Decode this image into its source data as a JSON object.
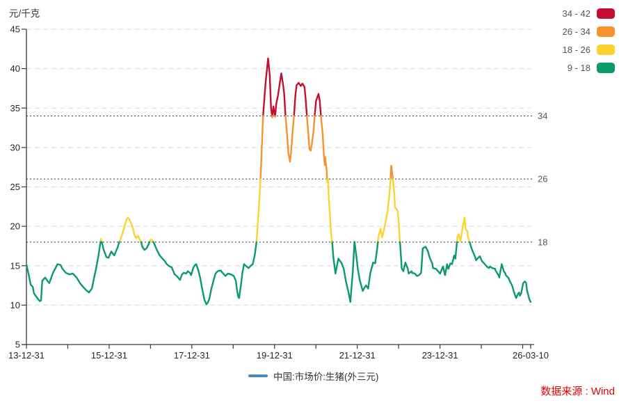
{
  "unit_label": "元/千克",
  "source_label": "数据来源 : Wind",
  "series_legend": {
    "label": "中国:市场价:生猪(外三元)",
    "marker_color": "#4E86B4"
  },
  "bands_legend": [
    {
      "label": "34 - 42",
      "color": "#C60D32"
    },
    {
      "label": "26 - 34",
      "color": "#F79231"
    },
    {
      "label": "18 - 26",
      "color": "#FAD330"
    },
    {
      "label": "9 - 18",
      "color": "#0A9B68"
    }
  ],
  "chart_data": {
    "type": "line",
    "title": "",
    "series_name": "中国:市场价:生猪(外三元)",
    "ylabel": "元/千克",
    "ylim": [
      5,
      45
    ],
    "y_ticks": [
      45,
      40,
      35,
      30,
      25,
      20,
      15,
      10,
      5
    ],
    "grid": "dashed horizontal at every y tick",
    "threshold_lines": [
      {
        "value": 34,
        "label": "34"
      },
      {
        "value": 26,
        "label": "26"
      },
      {
        "value": 18,
        "label": "18"
      }
    ],
    "x_format": "decimal_year",
    "x_range": [
      2013.997,
      2026.19
    ],
    "x_major_tick_labels": [
      {
        "pos": 2013.997,
        "label": "13-12-31"
      },
      {
        "pos": 2015.997,
        "label": "15-12-31"
      },
      {
        "pos": 2017.997,
        "label": "17-12-31"
      },
      {
        "pos": 2019.997,
        "label": "19-12-31"
      },
      {
        "pos": 2021.997,
        "label": "21-12-31"
      },
      {
        "pos": 2023.997,
        "label": "23-12-31"
      },
      {
        "pos": 2026.19,
        "label": "26-03-10"
      }
    ],
    "minor_ticks_every_years": 1,
    "color_bands": [
      {
        "range": [
          34,
          42
        ],
        "color": "#C60D32"
      },
      {
        "range": [
          26,
          34
        ],
        "color": "#F79231"
      },
      {
        "range": [
          18,
          26
        ],
        "color": "#FAD330"
      },
      {
        "range": [
          9,
          18
        ],
        "color": "#0A9B68"
      }
    ],
    "points": [
      [
        2014.0,
        15.1
      ],
      [
        2014.05,
        13.9
      ],
      [
        2014.1,
        12.6
      ],
      [
        2014.15,
        12.3
      ],
      [
        2014.18,
        11.5
      ],
      [
        2014.23,
        11.1
      ],
      [
        2014.32,
        10.5
      ],
      [
        2014.35,
        10.6
      ],
      [
        2014.38,
        13.1
      ],
      [
        2014.45,
        13.5
      ],
      [
        2014.5,
        13.1
      ],
      [
        2014.55,
        12.8
      ],
      [
        2014.64,
        14.1
      ],
      [
        2014.7,
        14.7
      ],
      [
        2014.75,
        15.2
      ],
      [
        2014.82,
        15.1
      ],
      [
        2014.87,
        14.6
      ],
      [
        2014.95,
        14.1
      ],
      [
        2015.04,
        13.9
      ],
      [
        2015.12,
        14.0
      ],
      [
        2015.21,
        13.5
      ],
      [
        2015.29,
        12.8
      ],
      [
        2015.37,
        12.3
      ],
      [
        2015.44,
        11.9
      ],
      [
        2015.51,
        11.6
      ],
      [
        2015.58,
        12.1
      ],
      [
        2015.63,
        13.4
      ],
      [
        2015.68,
        14.6
      ],
      [
        2015.73,
        16.0
      ],
      [
        2015.76,
        17.0
      ],
      [
        2015.8,
        18.4
      ],
      [
        2015.83,
        17.8
      ],
      [
        2015.86,
        17.1
      ],
      [
        2015.93,
        16.1
      ],
      [
        2015.98,
        16.0
      ],
      [
        2016.05,
        16.8
      ],
      [
        2016.12,
        16.3
      ],
      [
        2016.2,
        17.3
      ],
      [
        2016.25,
        18.1
      ],
      [
        2016.32,
        19.1
      ],
      [
        2016.37,
        20.0
      ],
      [
        2016.42,
        20.9
      ],
      [
        2016.45,
        21.1
      ],
      [
        2016.48,
        20.9
      ],
      [
        2016.53,
        20.4
      ],
      [
        2016.58,
        19.6
      ],
      [
        2016.61,
        18.9
      ],
      [
        2016.65,
        18.5
      ],
      [
        2016.7,
        18.8
      ],
      [
        2016.73,
        18.4
      ],
      [
        2016.77,
        18.0
      ],
      [
        2016.8,
        17.4
      ],
      [
        2016.85,
        17.0
      ],
      [
        2016.9,
        17.2
      ],
      [
        2016.95,
        17.7
      ],
      [
        2017.0,
        18.3
      ],
      [
        2017.04,
        18.2
      ],
      [
        2017.08,
        17.9
      ],
      [
        2017.11,
        17.5
      ],
      [
        2017.16,
        16.9
      ],
      [
        2017.22,
        16.3
      ],
      [
        2017.27,
        16.0
      ],
      [
        2017.34,
        15.6
      ],
      [
        2017.39,
        15.2
      ],
      [
        2017.46,
        14.9
      ],
      [
        2017.51,
        14.8
      ],
      [
        2017.58,
        13.9
      ],
      [
        2017.63,
        13.7
      ],
      [
        2017.68,
        13.4
      ],
      [
        2017.71,
        13.2
      ],
      [
        2017.76,
        13.9
      ],
      [
        2017.8,
        14.1
      ],
      [
        2017.86,
        14.0
      ],
      [
        2017.9,
        14.3
      ],
      [
        2017.95,
        14.1
      ],
      [
        2017.98,
        13.8
      ],
      [
        2018.03,
        14.7
      ],
      [
        2018.06,
        15.0
      ],
      [
        2018.1,
        15.2
      ],
      [
        2018.15,
        14.5
      ],
      [
        2018.2,
        13.4
      ],
      [
        2018.25,
        12.0
      ],
      [
        2018.3,
        10.7
      ],
      [
        2018.35,
        10.1
      ],
      [
        2018.38,
        10.3
      ],
      [
        2018.42,
        10.8
      ],
      [
        2018.47,
        12.1
      ],
      [
        2018.52,
        13.1
      ],
      [
        2018.57,
        14.0
      ],
      [
        2018.62,
        14.3
      ],
      [
        2018.69,
        14.4
      ],
      [
        2018.74,
        14.1
      ],
      [
        2018.81,
        13.7
      ],
      [
        2018.87,
        14.0
      ],
      [
        2018.94,
        13.9
      ],
      [
        2019.01,
        13.7
      ],
      [
        2019.06,
        13.1
      ],
      [
        2019.09,
        11.9
      ],
      [
        2019.12,
        11.0
      ],
      [
        2019.14,
        10.9
      ],
      [
        2019.19,
        12.8
      ],
      [
        2019.22,
        14.1
      ],
      [
        2019.26,
        15.2
      ],
      [
        2019.32,
        14.9
      ],
      [
        2019.37,
        14.7
      ],
      [
        2019.42,
        15.0
      ],
      [
        2019.47,
        15.2
      ],
      [
        2019.52,
        16.4
      ],
      [
        2019.56,
        18.0
      ],
      [
        2019.59,
        20.1
      ],
      [
        2019.62,
        22.6
      ],
      [
        2019.66,
        26.3
      ],
      [
        2019.69,
        30.1
      ],
      [
        2019.72,
        34.1
      ],
      [
        2019.78,
        38.2
      ],
      [
        2019.84,
        41.3
      ],
      [
        2019.88,
        39.2
      ],
      [
        2019.91,
        35.2
      ],
      [
        2019.94,
        33.8
      ],
      [
        2019.97,
        35.2
      ],
      [
        2020.01,
        33.9
      ],
      [
        2020.04,
        35.6
      ],
      [
        2020.08,
        36.6
      ],
      [
        2020.13,
        38.4
      ],
      [
        2020.16,
        39.4
      ],
      [
        2020.2,
        38.1
      ],
      [
        2020.23,
        36.8
      ],
      [
        2020.26,
        34.1
      ],
      [
        2020.3,
        31.6
      ],
      [
        2020.33,
        29.3
      ],
      [
        2020.37,
        28.2
      ],
      [
        2020.4,
        29.6
      ],
      [
        2020.43,
        31.8
      ],
      [
        2020.47,
        34.2
      ],
      [
        2020.5,
        36.6
      ],
      [
        2020.53,
        37.9
      ],
      [
        2020.58,
        38.2
      ],
      [
        2020.63,
        37.8
      ],
      [
        2020.67,
        38.1
      ],
      [
        2020.72,
        37.7
      ],
      [
        2020.75,
        36.1
      ],
      [
        2020.78,
        33.9
      ],
      [
        2020.82,
        31.4
      ],
      [
        2020.84,
        29.8
      ],
      [
        2020.87,
        29.6
      ],
      [
        2020.9,
        30.5
      ],
      [
        2020.94,
        32.1
      ],
      [
        2020.97,
        34.2
      ],
      [
        2021.0,
        35.9
      ],
      [
        2021.06,
        36.8
      ],
      [
        2021.09,
        35.9
      ],
      [
        2021.12,
        33.9
      ],
      [
        2021.16,
        31.7
      ],
      [
        2021.19,
        29.0
      ],
      [
        2021.21,
        27.8
      ],
      [
        2021.22,
        28.8
      ],
      [
        2021.26,
        26.9
      ],
      [
        2021.27,
        25.6
      ],
      [
        2021.29,
        26.0
      ],
      [
        2021.31,
        23.4
      ],
      [
        2021.34,
        21.1
      ],
      [
        2021.37,
        18.7
      ],
      [
        2021.39,
        18.0
      ],
      [
        2021.42,
        16.0
      ],
      [
        2021.47,
        14.0
      ],
      [
        2021.54,
        15.9
      ],
      [
        2021.62,
        15.3
      ],
      [
        2021.67,
        14.6
      ],
      [
        2021.72,
        13.1
      ],
      [
        2021.79,
        11.5
      ],
      [
        2021.83,
        10.4
      ],
      [
        2021.89,
        14.3
      ],
      [
        2021.93,
        18.1
      ],
      [
        2021.98,
        16.0
      ],
      [
        2022.01,
        14.6
      ],
      [
        2022.06,
        13.1
      ],
      [
        2022.13,
        11.8
      ],
      [
        2022.18,
        12.3
      ],
      [
        2022.21,
        12.5
      ],
      [
        2022.26,
        12.1
      ],
      [
        2022.31,
        14.0
      ],
      [
        2022.38,
        15.4
      ],
      [
        2022.43,
        15.3
      ],
      [
        2022.48,
        17.2
      ],
      [
        2022.51,
        18.7
      ],
      [
        2022.56,
        19.7
      ],
      [
        2022.6,
        18.6
      ],
      [
        2022.68,
        20.5
      ],
      [
        2022.73,
        21.9
      ],
      [
        2022.77,
        23.8
      ],
      [
        2022.8,
        25.7
      ],
      [
        2022.82,
        27.7
      ],
      [
        2022.86,
        25.9
      ],
      [
        2022.89,
        24.3
      ],
      [
        2022.91,
        22.4
      ],
      [
        2022.94,
        22.2
      ],
      [
        2022.97,
        22.0
      ],
      [
        2022.99,
        21.1
      ],
      [
        2023.02,
        18.7
      ],
      [
        2023.06,
        15.7
      ],
      [
        2023.07,
        14.7
      ],
      [
        2023.11,
        14.3
      ],
      [
        2023.16,
        15.4
      ],
      [
        2023.19,
        15.0
      ],
      [
        2023.22,
        14.6
      ],
      [
        2023.24,
        14.0
      ],
      [
        2023.31,
        14.3
      ],
      [
        2023.32,
        14.1
      ],
      [
        2023.39,
        14.0
      ],
      [
        2023.44,
        13.7
      ],
      [
        2023.49,
        13.8
      ],
      [
        2023.54,
        14.1
      ],
      [
        2023.56,
        15.5
      ],
      [
        2023.58,
        17.2
      ],
      [
        2023.65,
        17.4
      ],
      [
        2023.7,
        16.9
      ],
      [
        2023.75,
        16.0
      ],
      [
        2023.81,
        15.3
      ],
      [
        2023.83,
        14.7
      ],
      [
        2023.9,
        14.6
      ],
      [
        2023.95,
        14.3
      ],
      [
        2024.0,
        14.0
      ],
      [
        2024.07,
        14.9
      ],
      [
        2024.12,
        13.8
      ],
      [
        2024.17,
        15.2
      ],
      [
        2024.2,
        14.6
      ],
      [
        2024.25,
        15.3
      ],
      [
        2024.29,
        15.2
      ],
      [
        2024.34,
        16.3
      ],
      [
        2024.37,
        15.9
      ],
      [
        2024.42,
        18.7
      ],
      [
        2024.45,
        19.0
      ],
      [
        2024.49,
        18.1
      ],
      [
        2024.54,
        19.7
      ],
      [
        2024.59,
        21.1
      ],
      [
        2024.62,
        19.6
      ],
      [
        2024.66,
        19.4
      ],
      [
        2024.67,
        18.7
      ],
      [
        2024.72,
        17.9
      ],
      [
        2024.76,
        17.2
      ],
      [
        2024.79,
        16.8
      ],
      [
        2024.84,
        16.2
      ],
      [
        2024.87,
        15.7
      ],
      [
        2024.92,
        16.0
      ],
      [
        2024.96,
        16.2
      ],
      [
        2025.01,
        15.6
      ],
      [
        2025.08,
        15.2
      ],
      [
        2025.13,
        14.9
      ],
      [
        2025.18,
        14.7
      ],
      [
        2025.21,
        14.9
      ],
      [
        2025.26,
        14.7
      ],
      [
        2025.33,
        14.6
      ],
      [
        2025.34,
        14.4
      ],
      [
        2025.41,
        13.8
      ],
      [
        2025.43,
        13.5
      ],
      [
        2025.49,
        15.2
      ],
      [
        2025.54,
        14.3
      ],
      [
        2025.58,
        14.0
      ],
      [
        2025.59,
        13.8
      ],
      [
        2025.66,
        13.4
      ],
      [
        2025.68,
        13.1
      ],
      [
        2025.74,
        12.5
      ],
      [
        2025.79,
        11.6
      ],
      [
        2025.83,
        11.0
      ],
      [
        2025.84,
        10.9
      ],
      [
        2025.88,
        11.4
      ],
      [
        2025.91,
        11.6
      ],
      [
        2025.93,
        11.2
      ],
      [
        2025.96,
        11.5
      ],
      [
        2026.01,
        12.8
      ],
      [
        2026.05,
        13.0
      ],
      [
        2026.08,
        12.8
      ],
      [
        2026.1,
        11.9
      ],
      [
        2026.16,
        10.7
      ],
      [
        2026.19,
        10.4
      ]
    ]
  }
}
